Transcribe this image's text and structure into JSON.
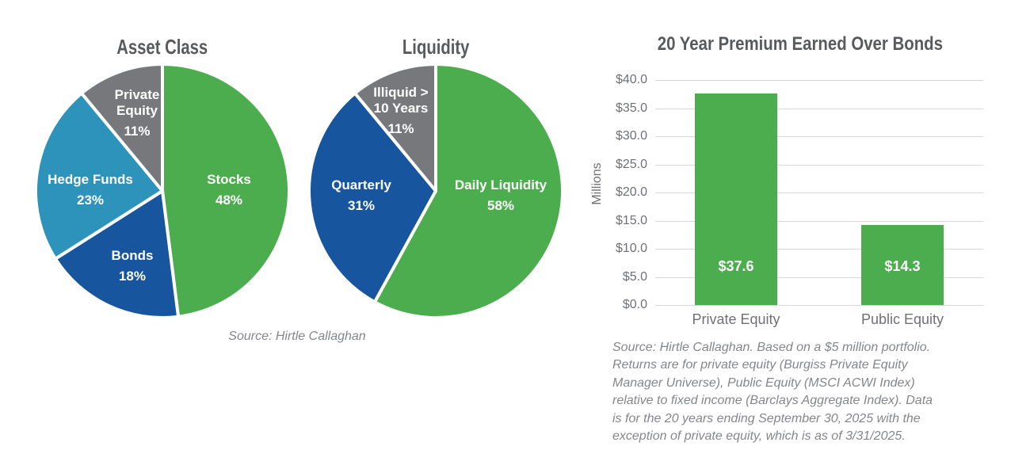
{
  "colors": {
    "green": "#4bad4d",
    "dark_blue": "#17569e",
    "teal": "#2e93ba",
    "gray": "#77787b",
    "heading_text": "#595a5c",
    "axis_text": "#6e7073",
    "gridline": "#d8d8d8",
    "source_text": "#84868a",
    "slice_label_text": "#ffffff"
  },
  "pies_source": "Source: Hirtle Callaghan",
  "bar_section": {
    "source_lines": [
      "Source: Hirtle Callaghan. Based on a $5 million portfolio.",
      "Returns are for private equity (Burgiss Private Equity",
      "Manager Universe), Public Equity (MSCI ACWI Index)",
      "relative to fixed income (Barclays Aggregate Index). Data",
      "is for the 20 years ending September 30, 2025 with the",
      "exception of private equity, which is as of 3/31/2025."
    ]
  },
  "chart_data": [
    {
      "type": "pie",
      "title": "Asset Class",
      "start_angle": "top",
      "direction": "clockwise",
      "slices": [
        {
          "label": "Stocks",
          "value": 48,
          "display": "48%",
          "color": "#4bad4d"
        },
        {
          "label": "Bonds",
          "value": 18,
          "display": "18%",
          "color": "#17569e"
        },
        {
          "label": "Hedge Funds",
          "value": 23,
          "display": "23%",
          "color": "#2e93ba"
        },
        {
          "label": "Private Equity",
          "value": 11,
          "display": "11%",
          "color": "#77787b"
        }
      ]
    },
    {
      "type": "pie",
      "title": "Liquidity",
      "start_angle": "top",
      "direction": "clockwise",
      "slices": [
        {
          "label": "Daily Liquidity",
          "value": 58,
          "display": "58%",
          "color": "#4bad4d"
        },
        {
          "label": "Quarterly",
          "value": 31,
          "display": "31%",
          "color": "#17569e"
        },
        {
          "label": "Illiquid > 10 Years",
          "value": 11,
          "display": "11%",
          "color": "#77787b"
        }
      ]
    },
    {
      "type": "bar",
      "title": "20 Year Premium Earned Over Bonds",
      "categories": [
        "Private Equity",
        "Public Equity"
      ],
      "values": [
        37.6,
        14.3
      ],
      "value_labels": [
        "$37.6",
        "$14.3"
      ],
      "ylabel": "Millions",
      "ylim": [
        0,
        40
      ],
      "yticks": [
        "$40.0",
        "$35.0",
        "$30.0",
        "$25.0",
        "$20.0",
        "$15.0",
        "$10.0",
        "$5.0",
        "$0.0"
      ],
      "bar_color": "#4bad4d",
      "grid": true,
      "legend": false
    }
  ]
}
